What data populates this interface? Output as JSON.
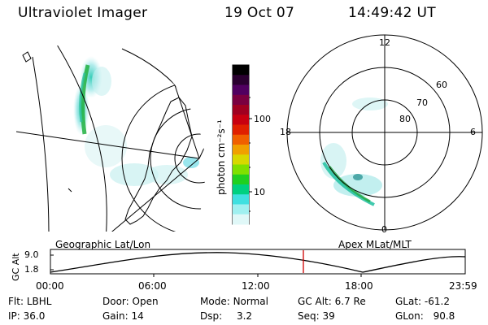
{
  "header": {
    "instrument": "Ultraviolet Imager",
    "date": "19 Oct 07",
    "time": "14:49:42 UT"
  },
  "left_panel": {
    "label": "Geographic Lat/Lon"
  },
  "right_panel": {
    "label": "Apex MLat/MLT",
    "mlt_labels": [
      "12",
      "18",
      "6",
      "0"
    ],
    "lat_labels": [
      "60",
      "70",
      "80"
    ]
  },
  "colorbar": {
    "label": "photon cm⁻²s⁻¹",
    "ticks": [
      "100",
      "10"
    ],
    "colors": [
      "#000000",
      "#2a0030",
      "#500060",
      "#7a0040",
      "#a00020",
      "#c80010",
      "#e02000",
      "#f06000",
      "#f0a000",
      "#d8d800",
      "#80e000",
      "#20d020",
      "#00d080",
      "#40e0e0",
      "#a0f0f0",
      "#e0f8f8"
    ]
  },
  "alt_plot": {
    "ylabel": "GC Alt",
    "yticks": [
      "9.0",
      "1.8"
    ],
    "xticks": [
      "00:00",
      "06:00",
      "12:00",
      "18:00",
      "23:59"
    ],
    "marker_time": "14:49:42"
  },
  "footer": {
    "filter": {
      "label": "Flt:",
      "value": "LBHL"
    },
    "ip": {
      "label": "IP:",
      "value": "36.0"
    },
    "door": {
      "label": "Door:",
      "value": "Open"
    },
    "gain": {
      "label": "Gain:",
      "value": "14"
    },
    "mode": {
      "label": "Mode:",
      "value": "Normal"
    },
    "dsp": {
      "label": "Dsp:",
      "value": "3.2"
    },
    "gc_alt": {
      "label": "GC Alt:",
      "value": "6.7 Re"
    },
    "seq": {
      "label": "Seq:",
      "value": "39"
    },
    "glat": {
      "label": "GLat:",
      "value": "-61.2"
    },
    "glon": {
      "label": "GLon:",
      "value": "90.8"
    }
  }
}
